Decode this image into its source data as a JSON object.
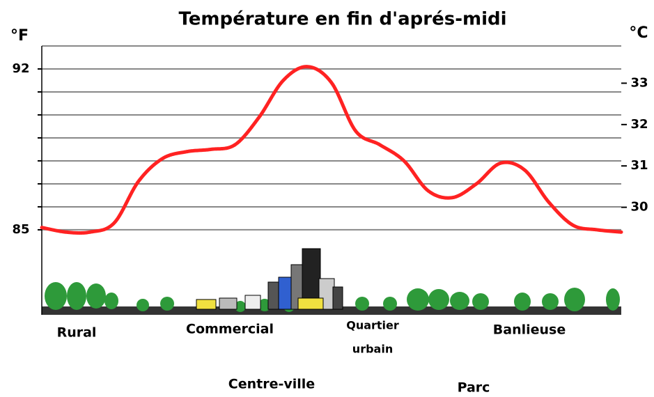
{
  "chart_data": {
    "type": "line",
    "title": "Température en fin d'aprés-midi",
    "y_unit": "°F",
    "y2_unit": "°C",
    "ylim": [
      81.3,
      93
    ],
    "yticks": [
      85,
      92
    ],
    "minor_yticks": [
      86,
      87,
      88,
      89,
      90,
      91
    ],
    "y2lim": [
      27.4,
      33.9
    ],
    "y2ticks": [
      30,
      31,
      32,
      33
    ],
    "grid": true,
    "series": [
      {
        "color": "#ff2222",
        "values": [
          85.1,
          84.9,
          84.9,
          85.3,
          87.1,
          88.1,
          88.4,
          88.5,
          88.7,
          89.9,
          91.5,
          92.1,
          91.4,
          89.3,
          88.7,
          88.0,
          86.7,
          86.4,
          87.0,
          87.9,
          87.6,
          86.2,
          85.2,
          85.0,
          84.9
        ]
      }
    ],
    "zones": [
      [
        "Rural"
      ],
      [
        "Commercial"
      ],
      [
        "Quartier",
        "urbain"
      ],
      [
        "Banlieuse"
      ],
      [
        "Centre-ville"
      ],
      [
        "Parc"
      ]
    ]
  }
}
